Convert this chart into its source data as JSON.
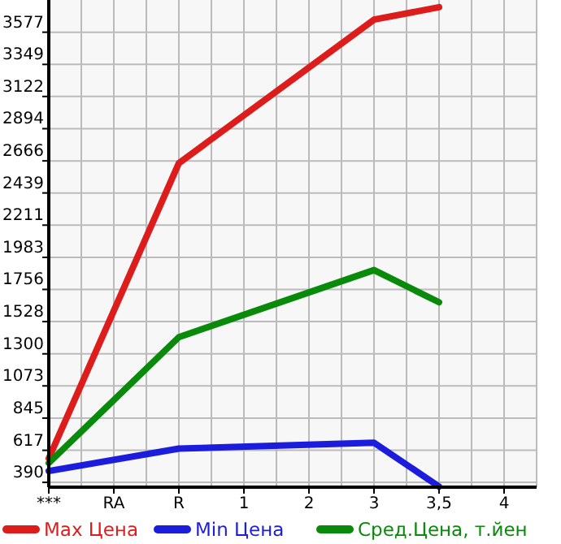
{
  "chart_data": {
    "type": "line",
    "categories": [
      "***",
      "RA",
      "R",
      "1",
      "2",
      "3",
      "3,5",
      "4"
    ],
    "series": [
      {
        "name": "Max Цена",
        "color": "#dd1c1c",
        "values": [
          560,
          null,
          2650,
          null,
          null,
          3666,
          3754,
          null
        ]
      },
      {
        "name": "Min Цена",
        "color": "#1c1cdd",
        "values": [
          470,
          null,
          629,
          null,
          null,
          671,
          360,
          null
        ]
      },
      {
        "name": "Сред.Цена, т.йен",
        "color": "#0a8a0a",
        "values": [
          527,
          null,
          1418,
          null,
          null,
          1893,
          1665,
          null
        ]
      }
    ],
    "ylim": [
      356,
      3805
    ],
    "yticks": [
      390,
      617,
      845,
      1073,
      1300,
      1528,
      1756,
      1983,
      2211,
      2439,
      2666,
      2894,
      3122,
      3349,
      3577
    ],
    "grid": true,
    "legend": "bottom",
    "marker": "none",
    "line_style": "solid"
  }
}
